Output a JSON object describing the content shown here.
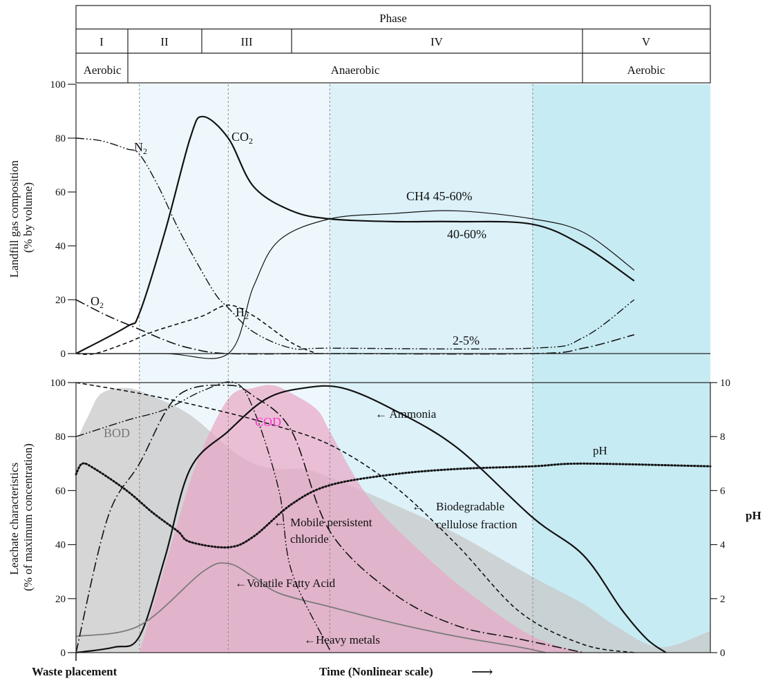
{
  "header": {
    "phase_label": "Phase",
    "phases": [
      "I",
      "II",
      "III",
      "IV",
      "V"
    ],
    "conditions": [
      "Aerobic",
      "Anaerobic",
      "Aerobic"
    ]
  },
  "colors": {
    "phase_II_III_bg": "#eef8fc",
    "phase_IV_bg": "#dcf1f8",
    "phase_V_bg": "#c7ebf3",
    "bod_fill": "#c8c8c8",
    "cod_fill": "#e8a6c6",
    "cod_label": "#ff33cc",
    "line": "#111111",
    "vfa_line": "#7a7a7a",
    "divider": "#8a8a8a"
  },
  "chart_data": [
    {
      "type": "line",
      "ylabel": "Landfill gas composition\n(% by volume)",
      "ylim": [
        0,
        100
      ],
      "yticks": [
        0,
        20,
        40,
        60,
        80,
        100
      ],
      "x_unit": "Time (nonlinear scale)",
      "phase_boundaries": [
        0,
        10,
        24,
        40,
        72,
        100
      ],
      "series": [
        {
          "name": "CO2",
          "style": "solid",
          "x": [
            0,
            8,
            10,
            14,
            18,
            20,
            24,
            28,
            34,
            40,
            50,
            60,
            72,
            80,
            88
          ],
          "y": [
            0,
            10,
            15,
            45,
            80,
            88,
            80,
            62,
            53,
            50,
            49,
            49,
            48,
            40,
            27
          ]
        },
        {
          "name": "CH4",
          "style": "solid-thin",
          "x": [
            0,
            14,
            24,
            28,
            32,
            40,
            50,
            60,
            72,
            80,
            88
          ],
          "y": [
            0,
            0,
            0,
            25,
            42,
            50,
            52,
            53,
            50,
            45,
            31
          ]
        },
        {
          "name": "N2",
          "style": "dash-dot-dot",
          "x": [
            0,
            4,
            8,
            10,
            13,
            16,
            19,
            22,
            24,
            28,
            34,
            40,
            72,
            80,
            88
          ],
          "y": [
            80,
            79,
            76,
            74,
            62,
            47,
            34,
            22,
            17,
            8,
            2,
            2,
            2,
            6,
            20
          ]
        },
        {
          "name": "O2",
          "style": "dash-dot",
          "x": [
            0,
            5,
            10,
            14,
            18,
            24,
            40,
            72,
            80,
            88
          ],
          "y": [
            20,
            14,
            9,
            5,
            2,
            0,
            0,
            0,
            2,
            7
          ]
        },
        {
          "name": "H2",
          "style": "dashed",
          "x": [
            0,
            3,
            8,
            12,
            16,
            20,
            24,
            28,
            34,
            38
          ],
          "y": [
            0,
            0,
            4,
            8,
            11,
            14,
            18,
            14,
            4,
            0
          ]
        }
      ],
      "annotations": [
        "CO2",
        "N2",
        "O2",
        "H2",
        "CH4 45-60%",
        "40-60%",
        "2-5%"
      ]
    },
    {
      "type": "area",
      "ylabel": "Leachate characteristics\n(% of maximum concentration)",
      "ylim": [
        0,
        100
      ],
      "yticks": [
        0,
        20,
        40,
        60,
        80,
        100
      ],
      "y2label": "pH",
      "y2lim": [
        0,
        10
      ],
      "y2ticks": [
        0,
        2,
        4,
        6,
        8,
        10
      ],
      "xlabel": "Time (Nonlinear scale)",
      "xstart_label": "Waste placement",
      "series": [
        {
          "name": "BOD",
          "style": "area",
          "x": [
            0,
            2,
            4,
            8,
            12,
            18,
            24,
            28,
            32,
            36,
            40,
            50,
            60,
            72,
            80,
            85,
            92,
            100
          ],
          "y": [
            78,
            88,
            96,
            98,
            95,
            88,
            76,
            70,
            68,
            68,
            65,
            55,
            44,
            28,
            18,
            10,
            2,
            8
          ]
        },
        {
          "name": "COD",
          "style": "area",
          "x": [
            10,
            15,
            19,
            24,
            28,
            31,
            34,
            38,
            40,
            44,
            48,
            55,
            62,
            72,
            80
          ],
          "y": [
            0,
            40,
            70,
            94,
            98,
            99,
            96,
            90,
            82,
            65,
            52,
            36,
            22,
            6,
            0
          ]
        },
        {
          "name": "Ammonia",
          "style": "solid",
          "x": [
            0,
            6,
            10,
            14,
            18,
            24,
            30,
            36,
            42,
            50,
            60,
            72,
            80,
            86,
            90,
            93
          ],
          "y": [
            0,
            2,
            6,
            35,
            68,
            82,
            94,
            98,
            98,
            90,
            76,
            50,
            36,
            16,
            5,
            0
          ]
        },
        {
          "name": "Volatile Fatty Acid",
          "style": "solid-thin",
          "x": [
            0,
            10,
            20,
            24,
            28,
            32,
            40,
            50,
            60,
            70,
            74
          ],
          "y": [
            6,
            10,
            30,
            33,
            28,
            22,
            17,
            11,
            6,
            2,
            0
          ]
        },
        {
          "name": "Biodegradable cellulose fraction",
          "style": "dashed",
          "x": [
            0,
            10,
            20,
            30,
            40,
            50,
            60,
            70,
            80,
            88
          ],
          "y": [
            100,
            96,
            91,
            85,
            77,
            62,
            40,
            15,
            3,
            0
          ]
        },
        {
          "name": "Mobile persistent chloride",
          "style": "dash-dot",
          "x": [
            0,
            5,
            10,
            16,
            24,
            28,
            34,
            40,
            50,
            60,
            70,
            80
          ],
          "y": [
            0,
            50,
            70,
            95,
            99,
            95,
            82,
            45,
            22,
            10,
            5,
            0
          ]
        },
        {
          "name": "Heavy metals",
          "style": "dash-dot-dot",
          "x": [
            0,
            8,
            14,
            20,
            25,
            28,
            32,
            34,
            40
          ],
          "y": [
            80,
            86,
            90,
            97,
            100,
            90,
            60,
            30,
            1
          ]
        },
        {
          "name": "pH",
          "axis": "y2",
          "style": "dotted",
          "x": [
            0,
            1,
            3,
            8,
            12,
            16,
            18,
            24,
            28,
            34,
            40,
            50,
            60,
            72,
            80,
            100
          ],
          "y": [
            6.6,
            7.0,
            6.8,
            6.0,
            5.2,
            4.5,
            4.1,
            3.9,
            4.3,
            5.5,
            6.2,
            6.6,
            6.8,
            6.9,
            7.0,
            6.9
          ]
        }
      ],
      "annotations": [
        "BOD",
        "COD",
        "Ammonia",
        "pH",
        "Biodegradable\ncellulose fraction",
        "Mobile persistent\nchloride",
        "Volatile Fatty Acid",
        "Heavy metals"
      ]
    }
  ]
}
